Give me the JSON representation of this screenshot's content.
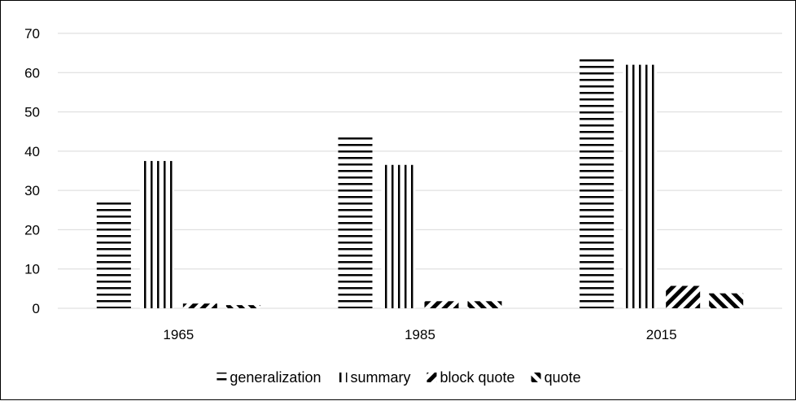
{
  "chart_data": {
    "type": "bar",
    "title": "",
    "xlabel": "",
    "ylabel": "",
    "categories": [
      "1965",
      "1985",
      "2015"
    ],
    "ylim": [
      0,
      70
    ],
    "yticks": [
      0,
      10,
      20,
      30,
      40,
      50,
      60,
      70
    ],
    "grid": true,
    "legend": "bottom",
    "series": [
      {
        "name": "generalization",
        "pattern": "horizontal-lines",
        "values": [
          28,
          43.5,
          64.5
        ]
      },
      {
        "name": "summary",
        "pattern": "vertical-lines",
        "values": [
          37.5,
          36.5,
          62
        ]
      },
      {
        "name": "block quote",
        "pattern": "back-diagonal-stripes",
        "values": [
          1.2,
          1.8,
          5.7
        ]
      },
      {
        "name": "quote",
        "pattern": "forward-diagonal-stripes",
        "values": [
          0.8,
          1.8,
          3.8
        ]
      }
    ],
    "colors": {
      "ink": "#000000",
      "gridline": "#d9d9d9",
      "background": "#ffffff"
    }
  }
}
